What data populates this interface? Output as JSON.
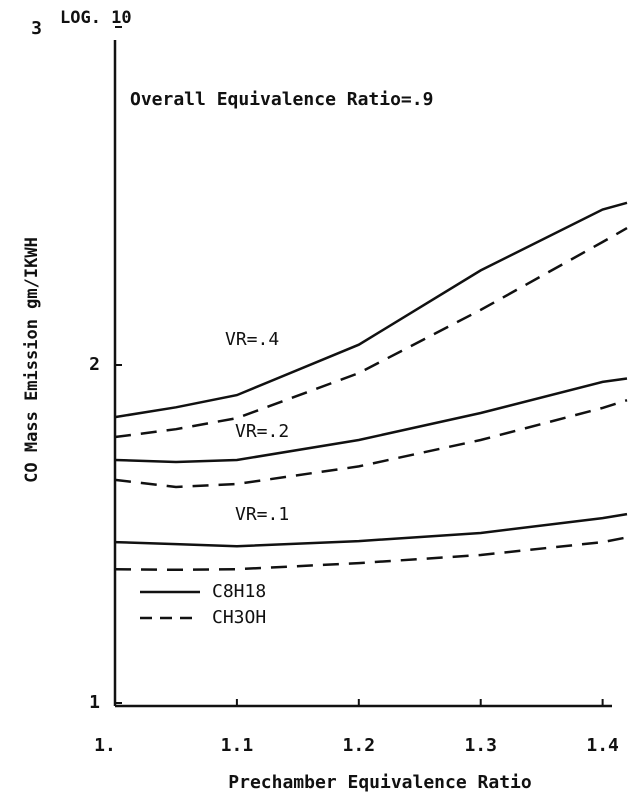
{
  "chart_data": {
    "type": "line",
    "title": "Overall Equivalence Ratio=.9",
    "x_label": "Prechamber Equivalence Ratio",
    "y_label": "CO Mass Emission gm/IKWH",
    "y_scale_note": "LOG. 10",
    "x": [
      1.0,
      1.05,
      1.1,
      1.2,
      1.3,
      1.4,
      1.42
    ],
    "xlim": [
      1.0,
      1.42
    ],
    "ylim": [
      1,
      3
    ],
    "xticks": [
      {
        "value": 1.0,
        "label": "1."
      },
      1.1,
      1.2,
      1.3,
      1.4
    ],
    "yticks": [
      1,
      2,
      3
    ],
    "color": "#111111",
    "legend": [
      {
        "name": "C8H18",
        "dash": "solid"
      },
      {
        "name": "CH3OH",
        "dash": "dashed"
      }
    ],
    "groups": [
      {
        "label": "VR=.4",
        "series": [
          [
            1.846,
            1.875,
            1.911,
            2.06,
            2.28,
            2.46,
            2.48
          ],
          [
            1.787,
            1.81,
            1.843,
            1.976,
            2.163,
            2.364,
            2.405
          ]
        ]
      },
      {
        "label": "VR=.2",
        "series": [
          [
            1.719,
            1.713,
            1.719,
            1.778,
            1.858,
            1.95,
            1.96
          ],
          [
            1.66,
            1.639,
            1.648,
            1.7,
            1.778,
            1.873,
            1.896
          ]
        ]
      },
      {
        "label": "VR=.1",
        "series": [
          [
            1.476,
            1.47,
            1.464,
            1.479,
            1.503,
            1.547,
            1.559
          ],
          [
            1.396,
            1.394,
            1.396,
            1.414,
            1.438,
            1.476,
            1.49
          ]
        ]
      }
    ]
  }
}
